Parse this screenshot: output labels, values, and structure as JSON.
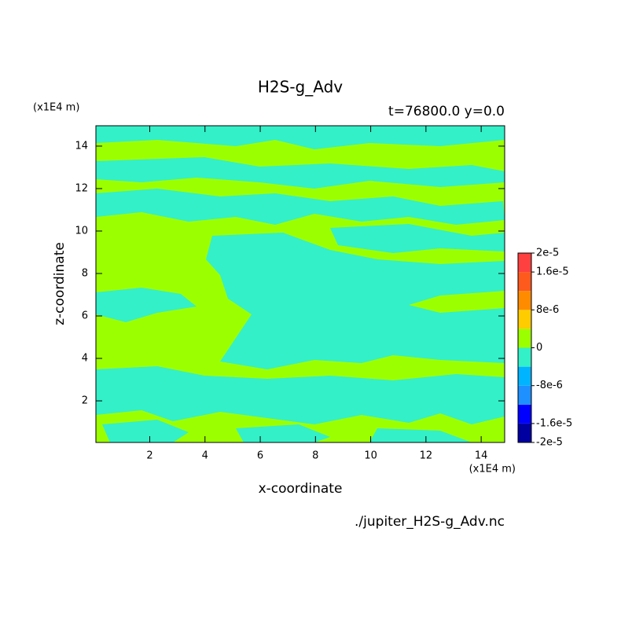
{
  "chart_data": {
    "type": "contour",
    "title": "H2S-g_Adv",
    "subtitle": "t=76800.0 y=0.0",
    "x_label": "x-coordinate",
    "y_label": "z-coordinate",
    "x_unit": "(x1E4 m)",
    "y_unit": "(x1E4 m)",
    "source": "./jupiter_H2S-g_Adv.nc",
    "xlim": [
      0.05,
      14.85
    ],
    "ylim": [
      0.04,
      14.96
    ],
    "xticks": [
      2,
      4,
      6,
      8,
      10,
      12,
      14
    ],
    "yticks": [
      2,
      4,
      6,
      8,
      10,
      12,
      14
    ],
    "colorbar": {
      "levels": [
        -2e-05,
        -1.6e-05,
        -1.2e-05,
        -8e-06,
        -4e-06,
        0,
        4e-06,
        8e-06,
        1.2e-05,
        1.6e-05,
        2e-05
      ],
      "colors": [
        "#0000a0",
        "#0000ff",
        "#1e90ff",
        "#00b4ff",
        "#33f0c8",
        "#9cff00",
        "#ffcc00",
        "#ff8c00",
        "#ff5a1e",
        "#ff4040"
      ],
      "ticks": [
        {
          "value": 2e-05,
          "label": "2e-5"
        },
        {
          "value": 1.6e-05,
          "label": "1.6e-5"
        },
        {
          "value": 8e-06,
          "label": "8e-6"
        },
        0,
        {
          "value": -8e-06,
          "label": "-8e-6"
        },
        {
          "value": -1.6e-05,
          "label": "-1.6e-5"
        },
        {
          "value": -2e-05,
          "label": "-2e-5"
        }
      ]
    }
  }
}
